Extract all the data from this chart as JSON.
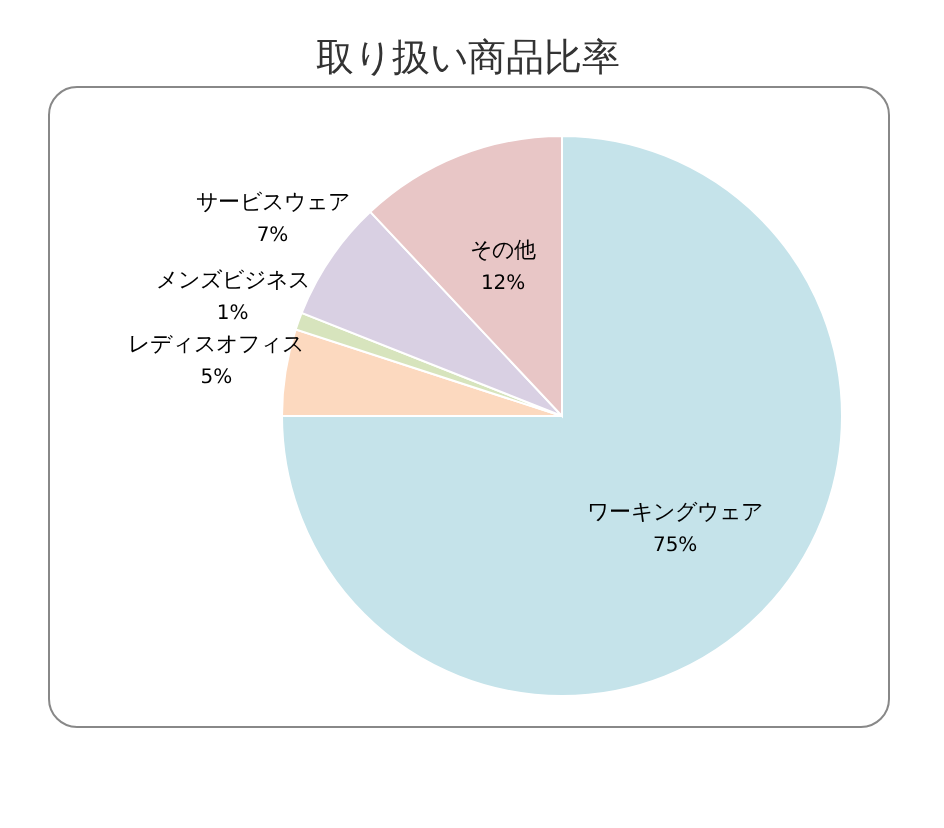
{
  "chart_data": {
    "type": "pie",
    "title": "取り扱い商品比率",
    "categories": [
      "ワーキングウェア",
      "レディスオフィス",
      "メンズビジネス",
      "サービスウェア",
      "その他"
    ],
    "values": [
      75,
      5,
      1,
      7,
      12
    ],
    "value_labels": [
      "75%",
      "5%",
      "1%",
      "7%",
      "12%"
    ],
    "colors": [
      "#c5e3ea",
      "#fcd9bf",
      "#d7e4bd",
      "#d9d0e3",
      "#e8c6c6"
    ],
    "legend": false
  }
}
